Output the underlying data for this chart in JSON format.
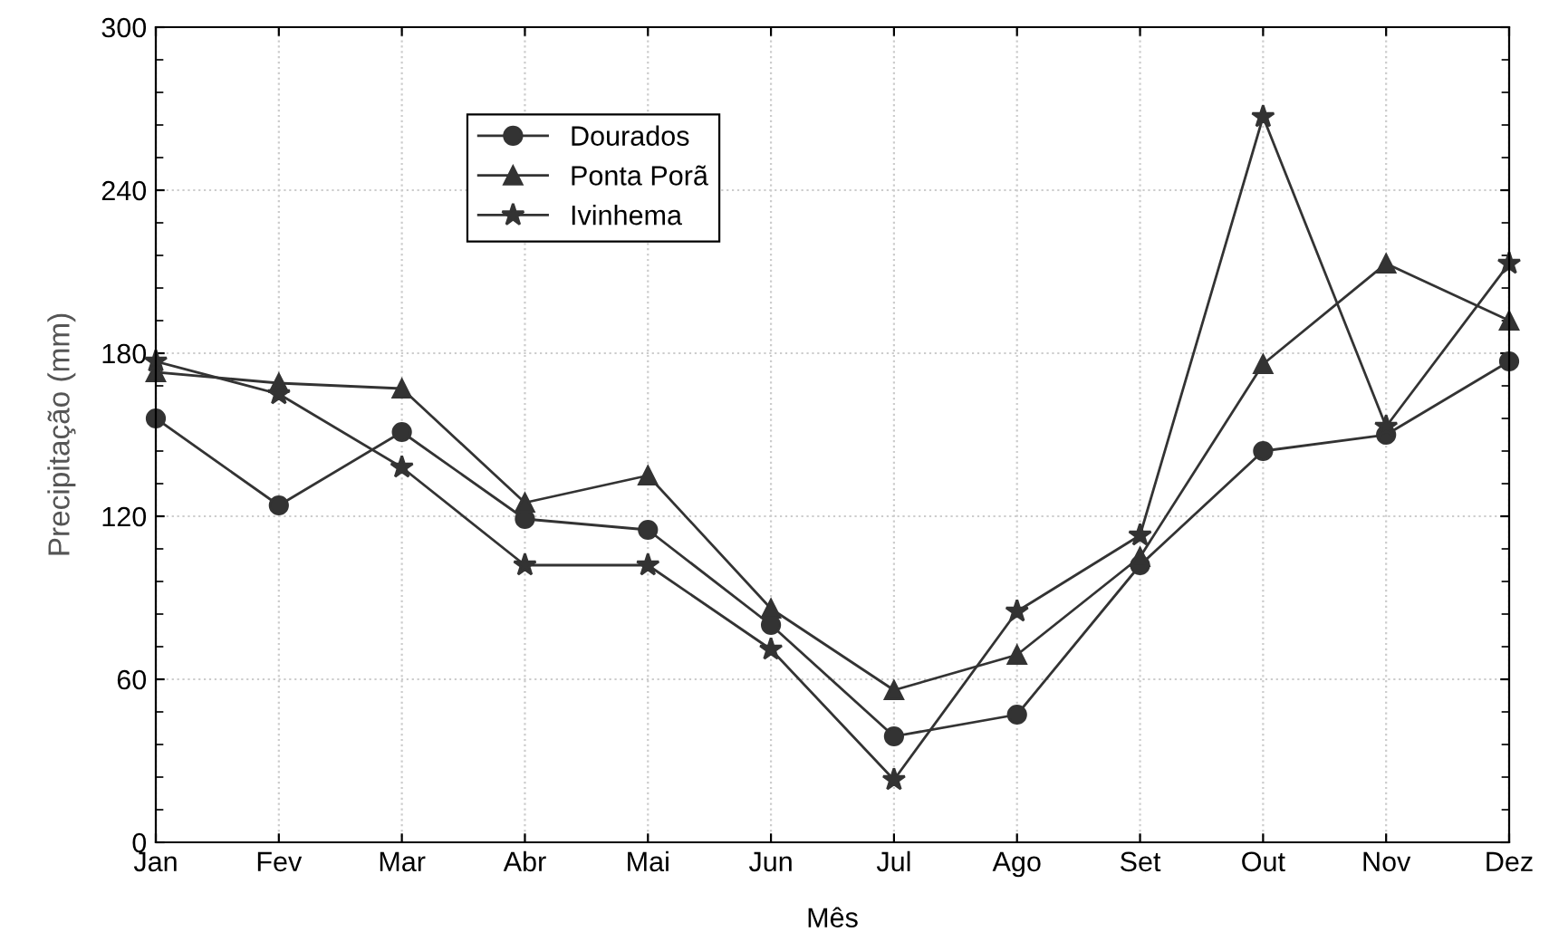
{
  "chart_data": {
    "type": "line",
    "xlabel": "Mês",
    "ylabel": "Precipitação (mm)",
    "categories": [
      "Jan",
      "Fev",
      "Mar",
      "Abr",
      "Mai",
      "Jun",
      "Jul",
      "Ago",
      "Set",
      "Out",
      "Nov",
      "Dez"
    ],
    "series": [
      {
        "name": "Dourados",
        "color": "#333333",
        "marker": "circle",
        "values": [
          156,
          124,
          151,
          119,
          115,
          80,
          39,
          47,
          102,
          144,
          150,
          177
        ]
      },
      {
        "name": "Ponta Porã",
        "color": "#333333",
        "marker": "triangle",
        "values": [
          173,
          169,
          167,
          125,
          135,
          86,
          56,
          69,
          105,
          176,
          213,
          192
        ]
      },
      {
        "name": "Ivinhema",
        "color": "#333333",
        "marker": "star",
        "values": [
          177,
          165,
          138,
          102,
          102,
          71,
          23,
          85,
          113,
          267,
          153,
          213
        ]
      }
    ],
    "ylim": [
      0,
      300
    ],
    "yticks": [
      0,
      60,
      120,
      180,
      240,
      300
    ],
    "grid": true,
    "legend": "top",
    "line_style": "solid"
  }
}
